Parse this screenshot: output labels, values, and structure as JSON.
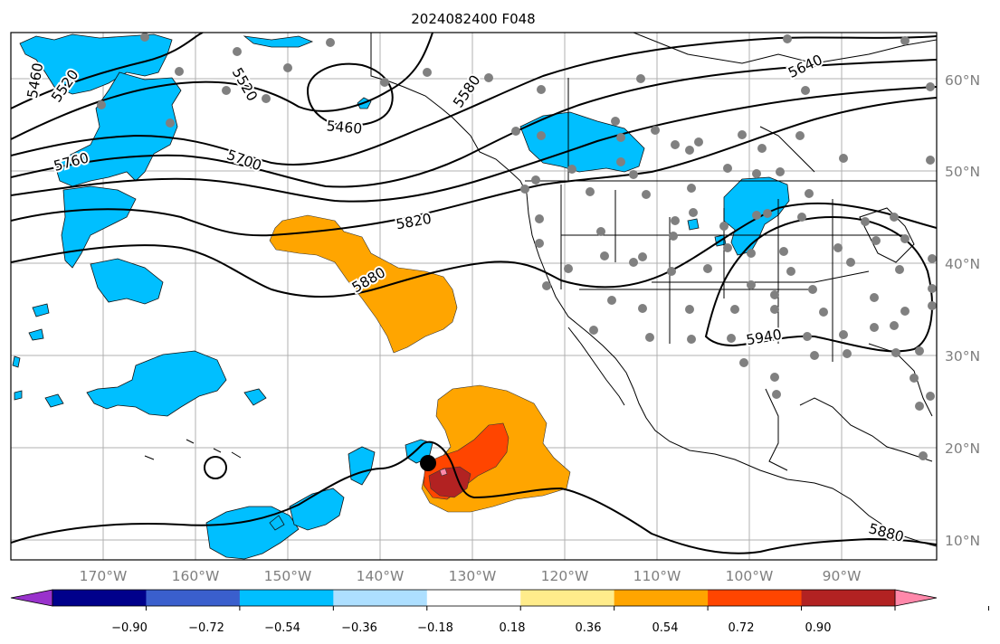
{
  "title": "2024082400 F048",
  "map": {
    "lat_labels": [
      "60°N",
      "50°N",
      "40°N",
      "30°N",
      "20°N",
      "10°N"
    ],
    "lon_labels": [
      "170°W",
      "160°W",
      "150°W",
      "140°W",
      "130°W",
      "120°W",
      "110°W",
      "100°W",
      "90°W"
    ],
    "contour_labels": [
      "5460",
      "5520",
      "5520",
      "5460",
      "5580",
      "5640",
      "5760",
      "5700",
      "5820",
      "5880",
      "5940",
      "5880"
    ],
    "contour_color": "#000000",
    "station_color": "#808080",
    "storm_center_color": "#000000"
  },
  "colorbar": {
    "ticks": [
      "−0.90",
      "−0.72",
      "−0.54",
      "−0.36",
      "−0.18",
      "0.18",
      "0.36",
      "0.54",
      "0.72",
      "0.90"
    ],
    "colors": [
      "#9932CC",
      "#00008B",
      "#3A5FCD",
      "#00BFFF",
      "#ADDFFF",
      "#FFFFFF",
      "#FFEC8B",
      "#FFA500",
      "#FF4500",
      "#B22222",
      "#FF88AA"
    ]
  }
}
